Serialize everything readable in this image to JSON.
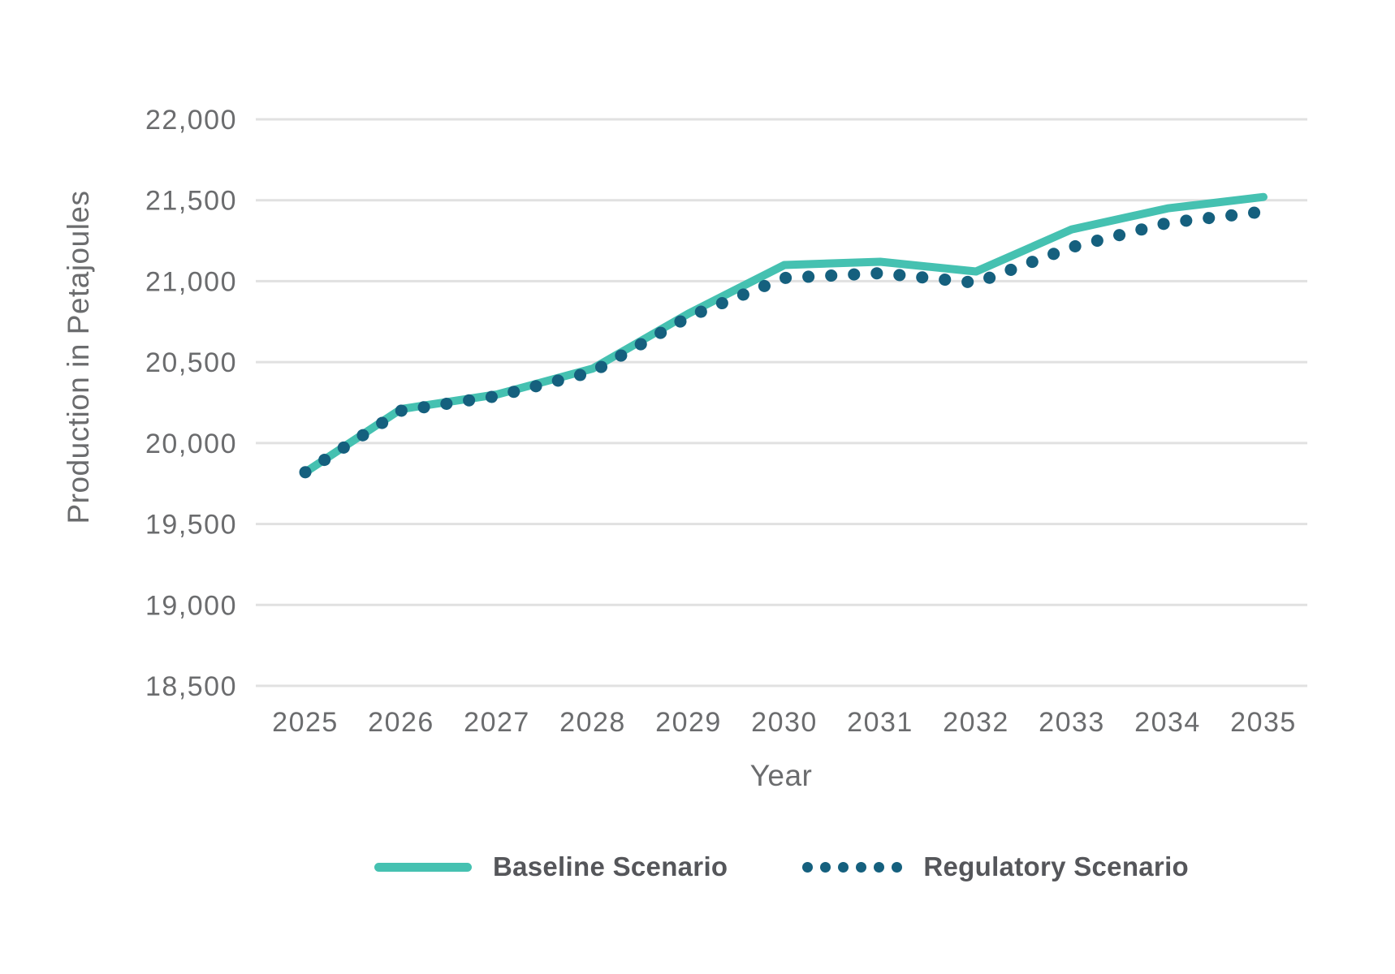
{
  "chart_data": {
    "type": "line",
    "title": "",
    "xlabel": "Year",
    "ylabel": "Production in Petajoules",
    "x": [
      "2025",
      "2026",
      "2027",
      "2028",
      "2029",
      "2030",
      "2031",
      "2032",
      "2033",
      "2034",
      "2035"
    ],
    "series": [
      {
        "name": "Baseline Scenario",
        "style": "solid",
        "color": "#45C1B1",
        "values": [
          19820,
          20210,
          20300,
          20460,
          20800,
          21100,
          21120,
          21060,
          21320,
          21450,
          21520
        ]
      },
      {
        "name": "Regulatory Scenario",
        "style": "dotted",
        "color": "#15607E",
        "values": [
          19820,
          20200,
          20290,
          20440,
          20780,
          21020,
          21050,
          20990,
          21210,
          21360,
          21430
        ]
      }
    ],
    "ylim": [
      18500,
      22000
    ],
    "yticks": [
      {
        "value": 18500,
        "label": "18,500"
      },
      {
        "value": 19000,
        "label": "19,000"
      },
      {
        "value": 19500,
        "label": "19,500"
      },
      {
        "value": 20000,
        "label": "20,000"
      },
      {
        "value": 20500,
        "label": "20,500"
      },
      {
        "value": 21000,
        "label": "21,000"
      },
      {
        "value": 21500,
        "label": "21,500"
      },
      {
        "value": 22000,
        "label": "22,000"
      }
    ],
    "grid": "horizontal-only",
    "legend_position": "bottom-center",
    "colors": {
      "axis_text": "#6B6C6E",
      "legend_text": "#55565A",
      "gridline": "#E1E1E1",
      "background": "#FFFFFF"
    }
  }
}
